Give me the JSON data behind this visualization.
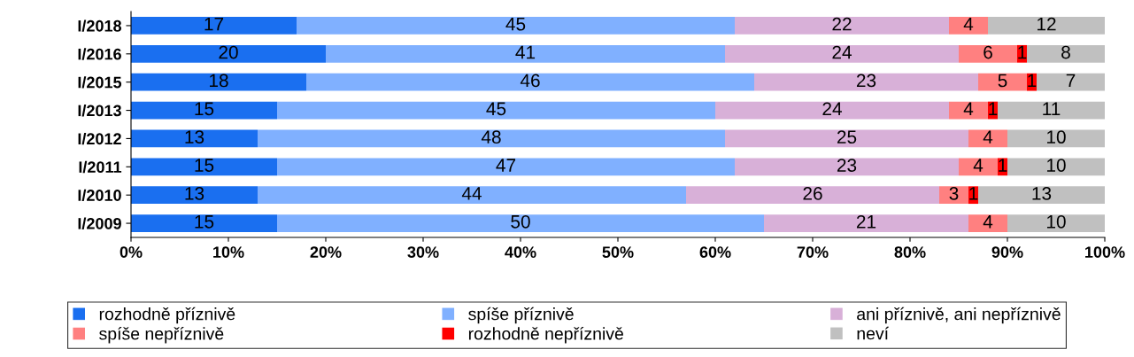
{
  "chart_data": {
    "type": "bar",
    "orientation": "horizontal",
    "stacked": true,
    "data_labels": true,
    "grid": false,
    "legend": "bottom",
    "categories": [
      "I/2018",
      "I/2016",
      "I/2015",
      "I/2013",
      "I/2012",
      "I/2011",
      "I/2010",
      "I/2009"
    ],
    "series": [
      {
        "name": "rozhodně příznivě",
        "color": "#1a6ff0",
        "values": [
          17,
          20,
          18,
          15,
          13,
          15,
          13,
          15
        ]
      },
      {
        "name": "spíše příznivě",
        "color": "#80b0ff",
        "values": [
          45,
          41,
          46,
          45,
          48,
          47,
          44,
          50
        ]
      },
      {
        "name": "ani příznivě, ani nepříznivě",
        "color": "#d8b0d8",
        "values": [
          22,
          24,
          23,
          24,
          25,
          23,
          26,
          21
        ]
      },
      {
        "name": "spíše nepříznivě",
        "color": "#ff8080",
        "values": [
          4,
          6,
          5,
          4,
          4,
          4,
          3,
          4
        ]
      },
      {
        "name": "rozhodně nepříznivě",
        "color": "#ff0000",
        "values": [
          null,
          1,
          1,
          1,
          null,
          1,
          1,
          null
        ]
      },
      {
        "name": "neví",
        "color": "#c0c0c0",
        "values": [
          12,
          8,
          7,
          11,
          10,
          10,
          13,
          10
        ]
      }
    ],
    "xlim": [
      0,
      100
    ],
    "xticks": [
      {
        "value": 0,
        "label": "0%"
      },
      {
        "value": 10,
        "label": "10%"
      },
      {
        "value": 20,
        "label": "20%"
      },
      {
        "value": 30,
        "label": "30%"
      },
      {
        "value": 40,
        "label": "40%"
      },
      {
        "value": 50,
        "label": "50%"
      },
      {
        "value": 60,
        "label": "60%"
      },
      {
        "value": 70,
        "label": "70%"
      },
      {
        "value": 80,
        "label": "80%"
      },
      {
        "value": 90,
        "label": "90%"
      },
      {
        "value": 100,
        "label": "100%"
      }
    ]
  }
}
